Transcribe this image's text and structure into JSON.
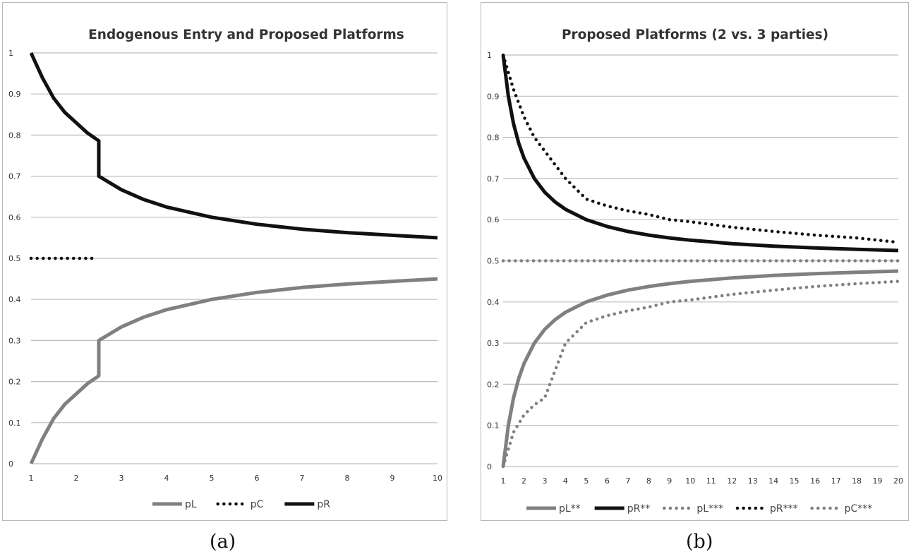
{
  "colors": {
    "dark": "#111111",
    "gray": "#808080",
    "grid": "#bdbdbd"
  },
  "captions": {
    "a": "(a)",
    "b": "(b)"
  },
  "chart_data": [
    {
      "type": "line",
      "title": "Endogenous Entry and Proposed Platforms",
      "xlim": [
        1,
        10
      ],
      "ylim": [
        0,
        1
      ],
      "x_ticks": [
        "1",
        "2",
        "3",
        "4",
        "5",
        "6",
        "7",
        "8",
        "9",
        "10"
      ],
      "y_ticks": [
        "0",
        "0.1",
        "0.2",
        "0.3",
        "0.4",
        "0.5",
        "0.6",
        "0.7",
        "0.8",
        "0.9",
        "1"
      ],
      "grid": "horizontal",
      "legend_position": "bottom",
      "series": [
        {
          "name": "pL",
          "color": "gray",
          "style": "solid",
          "points": [
            [
              1,
              0
            ],
            [
              1.25,
              0.06
            ],
            [
              1.5,
              0.11
            ],
            [
              1.75,
              0.145
            ],
            [
              2,
              0.17
            ],
            [
              2.25,
              0.195
            ],
            [
              2.5,
              0.214
            ],
            [
              2.5,
              0.3
            ],
            [
              3,
              0.333
            ],
            [
              3.5,
              0.357
            ],
            [
              4,
              0.375
            ],
            [
              5,
              0.4
            ],
            [
              6,
              0.417
            ],
            [
              7,
              0.429
            ],
            [
              8,
              0.4375
            ],
            [
              9,
              0.444
            ],
            [
              10,
              0.45
            ]
          ]
        },
        {
          "name": "pC",
          "color": "dark",
          "style": "dotted",
          "points": [
            [
              1,
              0.5
            ],
            [
              2.4,
              0.5
            ]
          ]
        },
        {
          "name": "pR",
          "color": "dark",
          "style": "solid",
          "points": [
            [
              1,
              1
            ],
            [
              1.25,
              0.94
            ],
            [
              1.5,
              0.89
            ],
            [
              1.75,
              0.855
            ],
            [
              2,
              0.83
            ],
            [
              2.25,
              0.805
            ],
            [
              2.5,
              0.786
            ],
            [
              2.5,
              0.7
            ],
            [
              3,
              0.667
            ],
            [
              3.5,
              0.643
            ],
            [
              4,
              0.625
            ],
            [
              5,
              0.6
            ],
            [
              6,
              0.583
            ],
            [
              7,
              0.571
            ],
            [
              8,
              0.5625
            ],
            [
              9,
              0.556
            ],
            [
              10,
              0.55
            ]
          ]
        }
      ]
    },
    {
      "type": "line",
      "title": "Proposed Platforms (2 vs. 3 parties)",
      "xlim": [
        1,
        20
      ],
      "ylim": [
        0,
        1
      ],
      "x_ticks": [
        "1",
        "2",
        "3",
        "4",
        "5",
        "6",
        "7",
        "8",
        "9",
        "10",
        "11",
        "12",
        "13",
        "14",
        "15",
        "16",
        "17",
        "18",
        "19",
        "20"
      ],
      "y_ticks": [
        "0",
        "0.1",
        "0.2",
        "0.3",
        "0.4",
        "0.5",
        "0.6",
        "0.7",
        "0.8",
        "0.9",
        "1"
      ],
      "grid": "horizontal",
      "legend_position": "bottom",
      "series": [
        {
          "name": "pL**",
          "color": "gray",
          "style": "solid",
          "points": [
            [
              1,
              0
            ],
            [
              1.25,
              0.1
            ],
            [
              1.5,
              0.1667
            ],
            [
              1.75,
              0.2143
            ],
            [
              2,
              0.25
            ],
            [
              2.5,
              0.3
            ],
            [
              3,
              0.3333
            ],
            [
              3.5,
              0.3571
            ],
            [
              4,
              0.375
            ],
            [
              5,
              0.4
            ],
            [
              6,
              0.4167
            ],
            [
              7,
              0.4286
            ],
            [
              8,
              0.4375
            ],
            [
              9,
              0.4444
            ],
            [
              10,
              0.45
            ],
            [
              12,
              0.4583
            ],
            [
              14,
              0.4643
            ],
            [
              16,
              0.4688
            ],
            [
              18,
              0.4722
            ],
            [
              20,
              0.475
            ]
          ]
        },
        {
          "name": "pR**",
          "color": "dark",
          "style": "solid",
          "points": [
            [
              1,
              1
            ],
            [
              1.25,
              0.9
            ],
            [
              1.5,
              0.8333
            ],
            [
              1.75,
              0.7857
            ],
            [
              2,
              0.75
            ],
            [
              2.5,
              0.7
            ],
            [
              3,
              0.6667
            ],
            [
              3.5,
              0.6429
            ],
            [
              4,
              0.625
            ],
            [
              5,
              0.6
            ],
            [
              6,
              0.5833
            ],
            [
              7,
              0.5714
            ],
            [
              8,
              0.5625
            ],
            [
              9,
              0.5556
            ],
            [
              10,
              0.55
            ],
            [
              12,
              0.5417
            ],
            [
              14,
              0.5357
            ],
            [
              16,
              0.5313
            ],
            [
              18,
              0.5278
            ],
            [
              20,
              0.525
            ]
          ]
        },
        {
          "name": "pL***",
          "color": "gray",
          "style": "dotted",
          "points": [
            [
              1,
              0
            ],
            [
              1.5,
              0.0833
            ],
            [
              2,
              0.125
            ],
            [
              2.5,
              0.15
            ],
            [
              3,
              0.1667
            ],
            [
              4,
              0.3
            ],
            [
              5,
              0.35
            ],
            [
              6,
              0.3667
            ],
            [
              7,
              0.3786
            ],
            [
              8,
              0.3875
            ],
            [
              9,
              0.4
            ],
            [
              10,
              0.405
            ],
            [
              12,
              0.4183
            ],
            [
              14,
              0.4286
            ],
            [
              16,
              0.4375
            ],
            [
              18,
              0.4444
            ],
            [
              20,
              0.45
            ]
          ]
        },
        {
          "name": "pR***",
          "color": "dark",
          "style": "dotted",
          "points": [
            [
              1,
              1
            ],
            [
              1.5,
              0.9167
            ],
            [
              2,
              0.85
            ],
            [
              2.5,
              0.8
            ],
            [
              3,
              0.7667
            ],
            [
              4,
              0.7
            ],
            [
              5,
              0.65
            ],
            [
              6,
              0.6333
            ],
            [
              7,
              0.6214
            ],
            [
              8,
              0.6125
            ],
            [
              9,
              0.6
            ],
            [
              10,
              0.595
            ],
            [
              12,
              0.5817
            ],
            [
              14,
              0.5714
            ],
            [
              16,
              0.5625
            ],
            [
              18,
              0.5556
            ],
            [
              20,
              0.545
            ]
          ]
        },
        {
          "name": "pC***",
          "color": "gray",
          "style": "dotted",
          "points": [
            [
              1,
              0.5
            ],
            [
              20,
              0.5
            ]
          ]
        }
      ]
    }
  ]
}
